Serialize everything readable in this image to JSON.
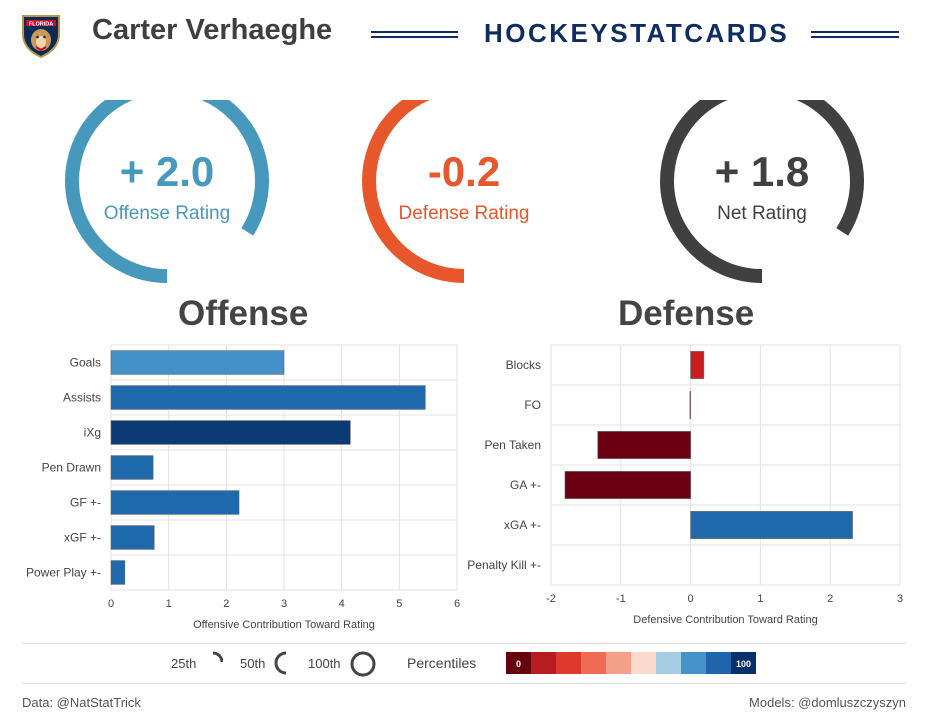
{
  "header": {
    "team_logo_text": "FLORIDA",
    "player_name": "Carter Verhaeghe",
    "brand": "HOCKEYSTATCARDS"
  },
  "ratings": [
    {
      "id": "offense",
      "value_text": "+ 2.0",
      "label": "Offense Rating",
      "color": "#4699bc",
      "percentile": 0.84
    },
    {
      "id": "defense",
      "value_text": "-0.2",
      "label": "Defense Rating",
      "color": "#e8562c",
      "percentile": 0.5
    },
    {
      "id": "net",
      "value_text": "+ 1.8",
      "label": "Net Rating",
      "color": "#404040",
      "percentile": 0.84
    }
  ],
  "sections": {
    "offense_title": "Offense",
    "defense_title": "Defense"
  },
  "chart_data": [
    {
      "id": "offense",
      "type": "bar",
      "orientation": "horizontal",
      "categories": [
        "Goals",
        "Assists",
        "iXg",
        "Pen Drawn",
        "GF +-",
        "xGF +-",
        "Power Play +-"
      ],
      "values": [
        3.0,
        5.45,
        4.15,
        0.73,
        2.22,
        0.75,
        0.24
      ],
      "colors": [
        "#4391c8",
        "#1f6aad",
        "#0b3a74",
        "#1f6aad",
        "#1f6aad",
        "#1f6aad",
        "#1f6aad"
      ],
      "xlabel": "Offensive Contribution Toward Rating",
      "xlim": [
        0,
        6
      ],
      "ticks": [
        "0",
        "1",
        "2",
        "3",
        "4",
        "5",
        "6"
      ],
      "grid": true
    },
    {
      "id": "defense",
      "type": "bar",
      "orientation": "horizontal",
      "categories": [
        "Blocks",
        "FO",
        "Pen Taken",
        "GA +-",
        "xGA +-",
        "Penalty Kill +-"
      ],
      "values": [
        0.19,
        -0.01,
        -1.33,
        -1.8,
        2.32,
        0.0
      ],
      "colors": [
        "#cb1d20",
        "#cb1d20",
        "#6a0011",
        "#6a0011",
        "#1f6aad",
        "#1f6aad"
      ],
      "xlabel": "Defensive Contribution Toward Rating",
      "xlim": [
        -2,
        3
      ],
      "ticks": [
        "-2",
        "-1",
        "0",
        "1",
        "2",
        "3"
      ],
      "grid": true
    }
  ],
  "legend": {
    "p25": "25th",
    "p50": "50th",
    "p100": "100th",
    "percentiles_label": "Percentiles",
    "scale_min": "0",
    "scale_max": "100",
    "scale_colors": [
      "#67000d",
      "#b61c20",
      "#e03a2f",
      "#ef6b56",
      "#f5a088",
      "#fbd9cc",
      "#a6cde4",
      "#4693c9",
      "#1e65aa",
      "#0b2f6b"
    ]
  },
  "footer": {
    "data_credit": "Data: @NatStatTrick",
    "models_credit": "Models: @domluszczyszyn"
  }
}
